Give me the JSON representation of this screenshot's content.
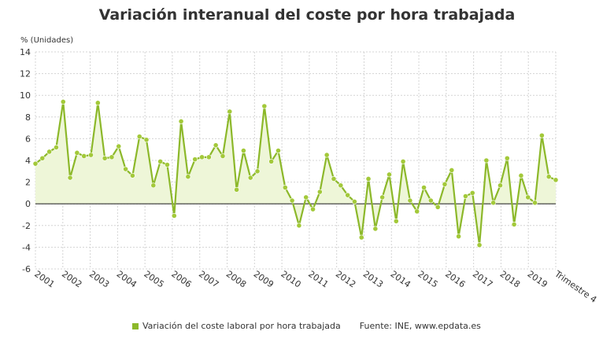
{
  "chart_data": {
    "type": "area",
    "title": "Variación interanual del coste por hora trabajada",
    "ylabel": "% (Unidades)",
    "xlabel": "",
    "ylim": [
      -6,
      14
    ],
    "yticks": [
      -6,
      -4,
      -2,
      0,
      2,
      4,
      6,
      8,
      10,
      12,
      14
    ],
    "grid": true,
    "legend_position": "bottom",
    "x_labels": [
      "2001",
      "2002",
      "2003",
      "2004",
      "2005",
      "2006",
      "2007",
      "2008",
      "2009",
      "2010",
      "2011",
      "2012",
      "2013",
      "2014",
      "2015",
      "2016",
      "2017",
      "2018",
      "2019",
      "Trimestre 4"
    ],
    "series": [
      {
        "name": "Variación del coste laboral por hora trabajada",
        "values": [
          3.7,
          4.2,
          4.8,
          5.2,
          9.4,
          2.4,
          4.7,
          4.4,
          4.5,
          9.3,
          4.2,
          4.3,
          5.3,
          3.2,
          2.6,
          6.2,
          5.9,
          1.7,
          3.9,
          3.6,
          -1.1,
          7.6,
          2.5,
          4.1,
          4.3,
          4.3,
          5.4,
          4.4,
          8.5,
          1.3,
          4.9,
          2.4,
          3.0,
          9.0,
          3.9,
          4.9,
          1.5,
          0.3,
          -2.0,
          0.6,
          -0.5,
          1.1,
          4.5,
          2.3,
          1.7,
          0.8,
          0.2,
          -3.1,
          2.3,
          -2.3,
          0.6,
          2.7,
          -1.6,
          3.9,
          0.3,
          -0.7,
          1.5,
          0.3,
          -0.3,
          1.8,
          3.1,
          -3.0,
          0.7,
          1.0,
          -3.8,
          4.0,
          0.1,
          1.7,
          4.2,
          -1.9,
          2.6,
          0.6,
          0.1,
          6.3,
          2.5,
          2.2
        ]
      }
    ],
    "source": "Fuente: INE, www.epdata.es",
    "colors": {
      "line": "#8cb82a",
      "marker": "#a3c93a",
      "fill": "#eef6d8",
      "grid": "#d4d4d4",
      "zero_line": "#333333",
      "text": "#333333"
    }
  }
}
